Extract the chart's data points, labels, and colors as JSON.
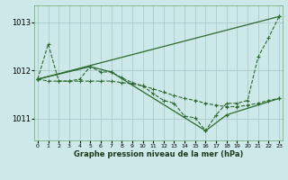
{
  "bg_color": "#cce8e8",
  "grid_color": "#aacccc",
  "line_color": "#2d6a2d",
  "title": "Graphe pression niveau de la mer (hPa)",
  "xlim": [
    -0.3,
    23.3
  ],
  "ylim": [
    1010.55,
    1013.35
  ],
  "yticks": [
    1011,
    1012,
    1013
  ],
  "series1_x": [
    0,
    1,
    2,
    3,
    4,
    5,
    6,
    7,
    8,
    9,
    10,
    11,
    12,
    13,
    14,
    15,
    16,
    17,
    18,
    19,
    20,
    21,
    22,
    23
  ],
  "series1_y": [
    1011.82,
    1012.55,
    1011.78,
    1011.78,
    1011.82,
    1012.08,
    1011.97,
    1011.97,
    1011.85,
    1011.75,
    1011.68,
    1011.52,
    1011.38,
    1011.32,
    1011.05,
    1011.02,
    1010.75,
    1011.08,
    1011.32,
    1011.32,
    1011.38,
    1012.28,
    1012.68,
    1013.12
  ],
  "series2_x": [
    0,
    1,
    2,
    3,
    4,
    5,
    6,
    7,
    8,
    9,
    10,
    11,
    12,
    13,
    14,
    15,
    16,
    17,
    18,
    19,
    20,
    21,
    22,
    23
  ],
  "series2_y": [
    1011.82,
    1011.78,
    1011.78,
    1011.78,
    1011.78,
    1011.78,
    1011.78,
    1011.78,
    1011.75,
    1011.72,
    1011.68,
    1011.62,
    1011.55,
    1011.48,
    1011.42,
    1011.38,
    1011.32,
    1011.28,
    1011.25,
    1011.25,
    1011.28,
    1011.32,
    1011.38,
    1011.42
  ],
  "series3_x": [
    0,
    23
  ],
  "series3_y": [
    1011.82,
    1013.12
  ],
  "series4_x": [
    0,
    5,
    7,
    16,
    18,
    23
  ],
  "series4_y": [
    1011.82,
    1012.08,
    1011.97,
    1010.75,
    1011.08,
    1011.42
  ]
}
